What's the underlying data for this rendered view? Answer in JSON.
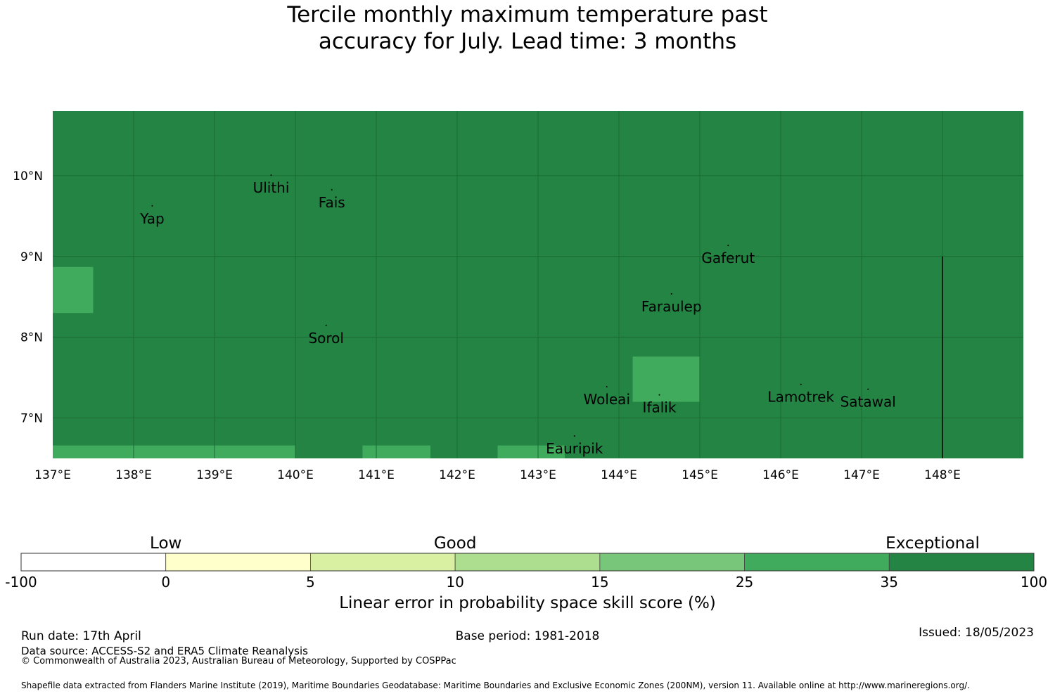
{
  "title_line1": "Tercile monthly maximum temperature past",
  "title_line2": "accuracy for July. Lead time: 3 months",
  "map": {
    "lon_range": [
      137,
      149
    ],
    "lat_range": [
      6.5,
      10.8
    ],
    "lon_ticks": [
      "137°E",
      "138°E",
      "139°E",
      "140°E",
      "141°E",
      "142°E",
      "143°E",
      "144°E",
      "145°E",
      "146°E",
      "147°E",
      "148°E"
    ],
    "lat_ticks": [
      "10°N",
      "9°N",
      "8°N",
      "7°N"
    ],
    "background_color": "#238443",
    "highlight_color": "#41ab5d",
    "grid_color": "#1a6a33",
    "highlight_cells": [
      {
        "lon0": 137.0,
        "lon1": 137.5,
        "lat0": 8.3,
        "lat1": 8.87
      },
      {
        "lon0": 144.17,
        "lon1": 145.0,
        "lat0": 7.2,
        "lat1": 7.76
      },
      {
        "lon0": 137.0,
        "lon1": 140.0,
        "lat0": 6.5,
        "lat1": 6.66
      },
      {
        "lon0": 140.83,
        "lon1": 141.67,
        "lat0": 6.5,
        "lat1": 6.66
      },
      {
        "lon0": 142.5,
        "lon1": 143.33,
        "lat0": 6.5,
        "lat1": 6.66
      }
    ],
    "places": [
      {
        "name": "Ulithi",
        "lon": 139.7,
        "lat": 9.85
      },
      {
        "name": "Fais",
        "lon": 140.45,
        "lat": 9.67
      },
      {
        "name": "Yap",
        "lon": 138.23,
        "lat": 9.47
      },
      {
        "name": "Gaferut",
        "lon": 145.35,
        "lat": 8.98
      },
      {
        "name": "Faraulep",
        "lon": 144.65,
        "lat": 8.38
      },
      {
        "name": "Sorol",
        "lon": 140.38,
        "lat": 7.99
      },
      {
        "name": "Woleai",
        "lon": 143.85,
        "lat": 7.23
      },
      {
        "name": "Ifalik",
        "lon": 144.5,
        "lat": 7.13
      },
      {
        "name": "Lamotrek",
        "lon": 146.25,
        "lat": 7.26
      },
      {
        "name": "Satawal",
        "lon": 147.08,
        "lat": 7.2
      },
      {
        "name": "Eauripik",
        "lon": 143.45,
        "lat": 6.62
      }
    ],
    "boundary_lon": 148.0,
    "boundary_lat_range": [
      6.5,
      9.0
    ]
  },
  "colorbar": {
    "categories": [
      {
        "name": "Low",
        "center": 1
      },
      {
        "name": "Good",
        "center": 3
      },
      {
        "name": "Exceptional",
        "center": 6.3
      }
    ],
    "bins": [
      {
        "from": "-100",
        "to": "0",
        "color": "#ffffff"
      },
      {
        "from": "0",
        "to": "5",
        "color": "#ffffcc"
      },
      {
        "from": "5",
        "to": "10",
        "color": "#d9f0a3"
      },
      {
        "from": "10",
        "to": "15",
        "color": "#addd8e"
      },
      {
        "from": "15",
        "to": "25",
        "color": "#78c679"
      },
      {
        "from": "25",
        "to": "35",
        "color": "#41ab5d"
      },
      {
        "from": "35",
        "to": "100",
        "color": "#238443"
      }
    ],
    "ticks": [
      "-100",
      "0",
      "5",
      "10",
      "15",
      "25",
      "35",
      "100"
    ],
    "label": "Linear error in probability space skill score (%)"
  },
  "footer": {
    "run_date": "Run date: 17th April",
    "base_period": "Base period: 1981-2018",
    "issued": "Issued: 18/05/2023",
    "data_source": "Data source: ACCESS-S2 and ERA5 Climate Reanalysis",
    "copyright": "© Commonwealth of Australia 2023, Australian Bureau of Meteorology, Supported by COSPPac",
    "shapefile": "Shapefile data extracted from Flanders Marine Institute (2019), Maritime Boundaries Geodatabase: Maritime Boundaries and Exclusive Economic Zones (200NM), version 11. Available online at http://www.marineregions.org/."
  }
}
